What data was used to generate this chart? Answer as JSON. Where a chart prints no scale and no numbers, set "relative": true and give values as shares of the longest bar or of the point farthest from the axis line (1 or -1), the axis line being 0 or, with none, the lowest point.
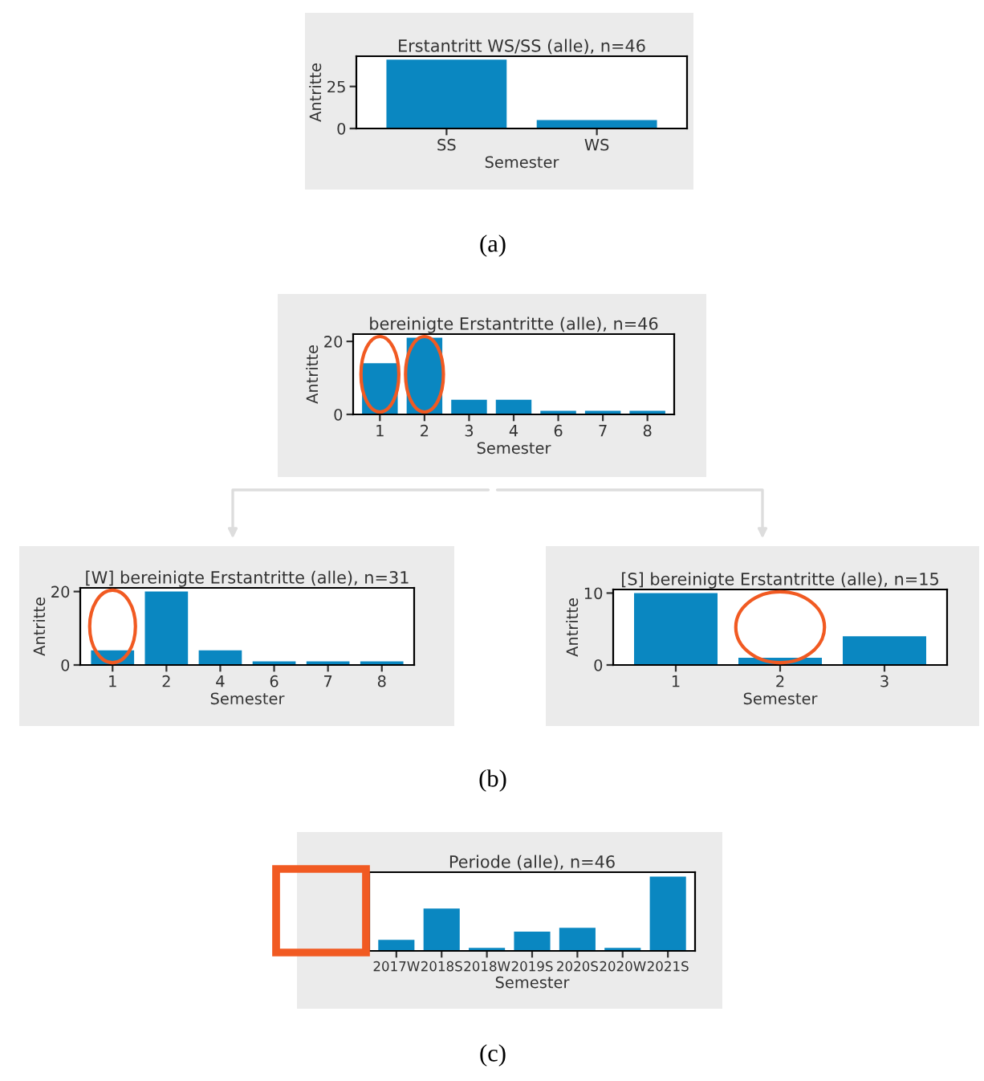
{
  "chart_data": [
    {
      "type": "bar",
      "title": "Erstantritt WS/SS (alle), n=46",
      "xlabel": "Semester",
      "ylabel": "Antritte",
      "categories": [
        "SS",
        "WS"
      ],
      "values": [
        41,
        5
      ],
      "color": "#0a87c1",
      "ylim": [
        0,
        43
      ],
      "yticks": [
        0,
        25
      ],
      "grid": false,
      "annotations": [
        "(a)"
      ]
    },
    {
      "type": "bar",
      "title": "bereinigte Erstantritte (alle), n=46",
      "xlabel": "Semester",
      "ylabel": "Antritte",
      "categories": [
        "1",
        "2",
        "3",
        "4",
        "6",
        "7",
        "8"
      ],
      "values": [
        14,
        21,
        4,
        4,
        1,
        1,
        1
      ],
      "color": "#0a87c1",
      "ylim": [
        0,
        22
      ],
      "yticks": [
        0,
        20
      ],
      "grid": false
    },
    {
      "type": "bar",
      "title": "[W] bereinigte Erstantritte (alle), n=31",
      "xlabel": "Semester",
      "ylabel": "Antritte",
      "categories": [
        "1",
        "2",
        "4",
        "6",
        "7",
        "8"
      ],
      "values": [
        4,
        20,
        4,
        1,
        1,
        1
      ],
      "color": "#0a87c1",
      "ylim": [
        0,
        21
      ],
      "yticks": [
        0,
        20
      ],
      "grid": false,
      "annotations": [
        "(b)"
      ]
    },
    {
      "type": "bar",
      "title": "[S] bereinigte Erstantritte (alle), n=15",
      "xlabel": "Semester",
      "ylabel": "Antritte",
      "categories": [
        "1",
        "2",
        "3"
      ],
      "values": [
        10,
        1,
        4
      ],
      "color": "#0a87c1",
      "ylim": [
        0,
        10.5
      ],
      "yticks": [
        0,
        10
      ],
      "grid": false
    },
    {
      "type": "bar",
      "title": "Periode (alle), n=46",
      "xlabel": "Semester",
      "categories": [
        "2017W",
        "2018S",
        "2018W",
        "2019S",
        "2020S",
        "2020W",
        "2021S"
      ],
      "values": [
        0.15,
        0.57,
        0.04,
        0.26,
        0.31,
        0.04,
        1
      ],
      "relative": true,
      "tick_labels": "x",
      "color": "#0a87c1",
      "grid": false,
      "annotations": [
        "(c)"
      ]
    }
  ]
}
